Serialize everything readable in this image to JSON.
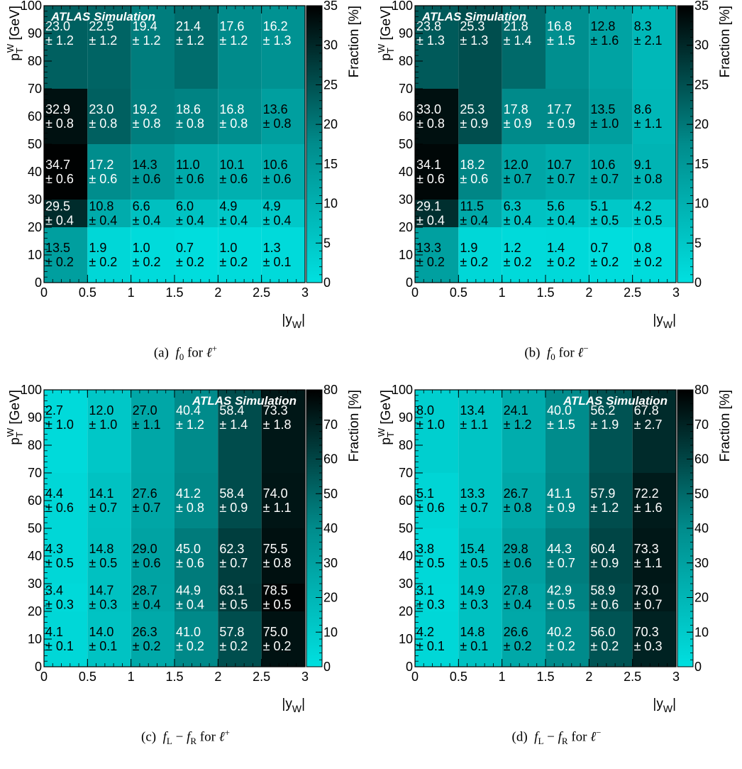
{
  "chart_data": [
    {
      "type": "heatmap",
      "caption": "(a) f0 for ℓ+",
      "x_edges": [
        0,
        0.5,
        1,
        1.5,
        2,
        2.5,
        3
      ],
      "y_edges": [
        0,
        20,
        30,
        50,
        70,
        100
      ],
      "xlim": [
        0,
        3
      ],
      "ylim": [
        0,
        100
      ],
      "x_ticks": [
        "0",
        "0.5",
        "1",
        "1.5",
        "2",
        "2.5",
        "3"
      ],
      "y_ticks": [
        "0",
        "10",
        "20",
        "30",
        "40",
        "50",
        "60",
        "70",
        "80",
        "90",
        "100"
      ],
      "xlabel": "|yW|",
      "ylabel": "pTW [GeV]",
      "zlabel": "Fraction [%]",
      "zlim": [
        0,
        35
      ],
      "z_ticks": [
        "0",
        "5",
        "10",
        "15",
        "20",
        "25",
        "30",
        "35"
      ],
      "label": "ATLAS Simulation",
      "label_position": "top-left",
      "values": [
        [
          13.5,
          1.9,
          1.0,
          0.7,
          1.0,
          1.3
        ],
        [
          29.5,
          10.8,
          6.6,
          6.0,
          4.9,
          4.9
        ],
        [
          34.7,
          17.2,
          14.3,
          11.0,
          10.1,
          10.6
        ],
        [
          32.9,
          23.0,
          19.2,
          18.6,
          16.8,
          13.6
        ],
        [
          23.0,
          22.5,
          19.4,
          21.4,
          17.6,
          16.2
        ]
      ],
      "errors": [
        [
          0.2,
          0.2,
          0.2,
          0.2,
          0.2,
          0.1
        ],
        [
          0.4,
          0.4,
          0.4,
          0.4,
          0.4,
          0.4
        ],
        [
          0.6,
          0.6,
          0.6,
          0.6,
          0.6,
          0.6
        ],
        [
          0.8,
          0.8,
          0.8,
          0.8,
          0.8,
          0.8
        ],
        [
          1.2,
          1.2,
          1.2,
          1.2,
          1.2,
          1.3
        ]
      ],
      "value_labels": [
        [
          "13.5",
          "1.9",
          "1.0",
          "0.7",
          "1.0",
          "1.3"
        ],
        [
          "29.5",
          "10.8",
          "6.6",
          "6.0",
          "4.9",
          "4.9"
        ],
        [
          "34.7",
          "17.2",
          "14.3",
          "11.0",
          "10.1",
          "10.6"
        ],
        [
          "32.9",
          "23.0",
          "19.2",
          "18.6",
          "16.8",
          "13.6"
        ],
        [
          "23.0",
          "22.5",
          "19.4",
          "21.4",
          "17.6",
          "16.2"
        ]
      ],
      "error_labels": [
        [
          "± 0.2",
          "± 0.2",
          "± 0.2",
          "± 0.2",
          "± 0.2",
          "± 0.1"
        ],
        [
          "± 0.4",
          "± 0.4",
          "± 0.4",
          "± 0.4",
          "± 0.4",
          "± 0.4"
        ],
        [
          "± 0.6",
          "± 0.6",
          "± 0.6",
          "± 0.6",
          "± 0.6",
          "± 0.6"
        ],
        [
          "± 0.8",
          "± 0.8",
          "± 0.8",
          "± 0.8",
          "± 0.8",
          "± 0.8"
        ],
        [
          "± 1.2",
          "± 1.2",
          "± 1.2",
          "± 1.2",
          "± 1.2",
          "± 1.3"
        ]
      ]
    },
    {
      "type": "heatmap",
      "caption": "(b) f0 for ℓ−",
      "x_edges": [
        0,
        0.5,
        1,
        1.5,
        2,
        2.5,
        3
      ],
      "y_edges": [
        0,
        20,
        30,
        50,
        70,
        100
      ],
      "xlim": [
        0,
        3
      ],
      "ylim": [
        0,
        100
      ],
      "x_ticks": [
        "0",
        "0.5",
        "1",
        "1.5",
        "2",
        "2.5",
        "3"
      ],
      "y_ticks": [
        "0",
        "10",
        "20",
        "30",
        "40",
        "50",
        "60",
        "70",
        "80",
        "90",
        "100"
      ],
      "xlabel": "|yW|",
      "ylabel": "pTW [GeV]",
      "zlabel": "Fraction [%]",
      "zlim": [
        0,
        35
      ],
      "z_ticks": [
        "0",
        "5",
        "10",
        "15",
        "20",
        "25",
        "30",
        "35"
      ],
      "label": "ATLAS Simulation",
      "label_position": "top-left",
      "values": [
        [
          13.3,
          1.9,
          1.2,
          1.4,
          0.7,
          0.8
        ],
        [
          29.1,
          11.5,
          6.3,
          5.6,
          5.1,
          4.2
        ],
        [
          34.1,
          18.2,
          12.0,
          10.7,
          10.6,
          9.1
        ],
        [
          33.0,
          25.3,
          17.8,
          17.7,
          13.5,
          8.6
        ],
        [
          23.8,
          25.3,
          21.8,
          16.8,
          12.8,
          8.3
        ]
      ],
      "errors": [
        [
          0.2,
          0.2,
          0.2,
          0.2,
          0.2,
          0.2
        ],
        [
          0.4,
          0.4,
          0.4,
          0.4,
          0.5,
          0.5
        ],
        [
          0.6,
          0.6,
          0.7,
          0.7,
          0.7,
          0.8
        ],
        [
          0.8,
          0.9,
          0.9,
          0.9,
          1.0,
          1.1
        ],
        [
          1.3,
          1.3,
          1.4,
          1.5,
          1.6,
          2.1
        ]
      ],
      "value_labels": [
        [
          "13.3",
          "1.9",
          "1.2",
          "1.4",
          "0.7",
          "0.8"
        ],
        [
          "29.1",
          "11.5",
          "6.3",
          "5.6",
          "5.1",
          "4.2"
        ],
        [
          "34.1",
          "18.2",
          "12.0",
          "10.7",
          "10.6",
          "9.1"
        ],
        [
          "33.0",
          "25.3",
          "17.8",
          "17.7",
          "13.5",
          "8.6"
        ],
        [
          "23.8",
          "25.3",
          "21.8",
          "16.8",
          "12.8",
          "8.3"
        ]
      ],
      "error_labels": [
        [
          "± 0.2",
          "± 0.2",
          "± 0.2",
          "± 0.2",
          "± 0.2",
          "± 0.2"
        ],
        [
          "± 0.4",
          "± 0.4",
          "± 0.4",
          "± 0.4",
          "± 0.5",
          "± 0.5"
        ],
        [
          "± 0.6",
          "± 0.6",
          "± 0.7",
          "± 0.7",
          "± 0.7",
          "± 0.8"
        ],
        [
          "± 0.8",
          "± 0.9",
          "± 0.9",
          "± 0.9",
          "± 1.0",
          "± 1.1"
        ],
        [
          "± 1.3",
          "± 1.3",
          "± 1.4",
          "± 1.5",
          "± 1.6",
          "± 2.1"
        ]
      ]
    },
    {
      "type": "heatmap",
      "caption": "(c) fL − fR for ℓ+",
      "x_edges": [
        0,
        0.5,
        1,
        1.5,
        2,
        2.5,
        3
      ],
      "y_edges": [
        0,
        20,
        30,
        50,
        70,
        100
      ],
      "xlim": [
        0,
        3
      ],
      "ylim": [
        0,
        100
      ],
      "x_ticks": [
        "0",
        "0.5",
        "1",
        "1.5",
        "2",
        "2.5",
        "3"
      ],
      "y_ticks": [
        "0",
        "10",
        "20",
        "30",
        "40",
        "50",
        "60",
        "70",
        "80",
        "90",
        "100"
      ],
      "xlabel": "|yW|",
      "ylabel": "pTW [GeV]",
      "zlabel": "Fraction [%]",
      "zlim": [
        0,
        80
      ],
      "z_ticks": [
        "0",
        "10",
        "20",
        "30",
        "40",
        "50",
        "60",
        "70",
        "80"
      ],
      "label": "ATLAS Simulation",
      "label_position": "top-right",
      "values": [
        [
          4.1,
          14.0,
          26.3,
          41.0,
          57.8,
          75.0
        ],
        [
          3.4,
          14.7,
          28.7,
          44.9,
          63.1,
          78.5
        ],
        [
          4.3,
          14.8,
          29.0,
          45.0,
          62.3,
          75.5
        ],
        [
          4.4,
          14.1,
          27.6,
          41.2,
          58.4,
          74.0
        ],
        [
          2.7,
          12.0,
          27.0,
          40.4,
          58.4,
          73.3
        ]
      ],
      "errors": [
        [
          0.1,
          0.1,
          0.2,
          0.2,
          0.2,
          0.2
        ],
        [
          0.3,
          0.3,
          0.4,
          0.4,
          0.5,
          0.5
        ],
        [
          0.5,
          0.5,
          0.6,
          0.6,
          0.7,
          0.8
        ],
        [
          0.6,
          0.7,
          0.7,
          0.8,
          0.9,
          1.1
        ],
        [
          1.0,
          1.0,
          1.1,
          1.2,
          1.4,
          1.8
        ]
      ],
      "value_labels": [
        [
          "4.1",
          "14.0",
          "26.3",
          "41.0",
          "57.8",
          "75.0"
        ],
        [
          "3.4",
          "14.7",
          "28.7",
          "44.9",
          "63.1",
          "78.5"
        ],
        [
          "4.3",
          "14.8",
          "29.0",
          "45.0",
          "62.3",
          "75.5"
        ],
        [
          "4.4",
          "14.1",
          "27.6",
          "41.2",
          "58.4",
          "74.0"
        ],
        [
          "2.7",
          "12.0",
          "27.0",
          "40.4",
          "58.4",
          "73.3"
        ]
      ],
      "error_labels": [
        [
          "± 0.1",
          "± 0.1",
          "± 0.2",
          "± 0.2",
          "± 0.2",
          "± 0.2"
        ],
        [
          "± 0.3",
          "± 0.3",
          "± 0.4",
          "± 0.4",
          "± 0.5",
          "± 0.5"
        ],
        [
          "± 0.5",
          "± 0.5",
          "± 0.6",
          "± 0.6",
          "± 0.7",
          "± 0.8"
        ],
        [
          "± 0.6",
          "± 0.7",
          "± 0.7",
          "± 0.8",
          "± 0.9",
          "± 1.1"
        ],
        [
          "± 1.0",
          "± 1.0",
          "± 1.1",
          "± 1.2",
          "± 1.4",
          "± 1.8"
        ]
      ]
    },
    {
      "type": "heatmap",
      "caption": "(d) fL − fR for ℓ−",
      "x_edges": [
        0,
        0.5,
        1,
        1.5,
        2,
        2.5,
        3
      ],
      "y_edges": [
        0,
        20,
        30,
        50,
        70,
        100
      ],
      "xlim": [
        0,
        3
      ],
      "ylim": [
        0,
        100
      ],
      "x_ticks": [
        "0",
        "0.5",
        "1",
        "1.5",
        "2",
        "2.5",
        "3"
      ],
      "y_ticks": [
        "0",
        "10",
        "20",
        "30",
        "40",
        "50",
        "60",
        "70",
        "80",
        "90",
        "100"
      ],
      "xlabel": "|yW|",
      "ylabel": "pTW [GeV]",
      "zlabel": "Fraction [%]",
      "zlim": [
        0,
        80
      ],
      "z_ticks": [
        "0",
        "10",
        "20",
        "30",
        "40",
        "50",
        "60",
        "70",
        "80"
      ],
      "label": "ATLAS Simulation",
      "label_position": "top-right",
      "values": [
        [
          4.2,
          14.8,
          26.6,
          40.2,
          56.0,
          70.3
        ],
        [
          3.1,
          14.9,
          27.8,
          42.9,
          58.9,
          73.0
        ],
        [
          3.8,
          15.4,
          29.8,
          44.3,
          60.4,
          73.3
        ],
        [
          5.1,
          13.3,
          26.7,
          41.1,
          57.9,
          72.2
        ],
        [
          8.0,
          13.4,
          24.1,
          40.0,
          56.2,
          67.8
        ]
      ],
      "errors": [
        [
          0.1,
          0.1,
          0.2,
          0.2,
          0.2,
          0.3
        ],
        [
          0.3,
          0.3,
          0.4,
          0.5,
          0.6,
          0.7
        ],
        [
          0.5,
          0.5,
          0.6,
          0.7,
          0.9,
          1.1
        ],
        [
          0.6,
          0.7,
          0.8,
          0.9,
          1.2,
          1.6
        ],
        [
          1.0,
          1.1,
          1.2,
          1.5,
          1.9,
          2.7
        ]
      ],
      "value_labels": [
        [
          "4.2",
          "14.8",
          "26.6",
          "40.2",
          "56.0",
          "70.3"
        ],
        [
          "3.1",
          "14.9",
          "27.8",
          "42.9",
          "58.9",
          "73.0"
        ],
        [
          "3.8",
          "15.4",
          "29.8",
          "44.3",
          "60.4",
          "73.3"
        ],
        [
          "5.1",
          "13.3",
          "26.7",
          "41.1",
          "57.9",
          "72.2"
        ],
        [
          "8.0",
          "13.4",
          "24.1",
          "40.0",
          "56.2",
          "67.8"
        ]
      ],
      "error_labels": [
        [
          "± 0.1",
          "± 0.1",
          "± 0.2",
          "± 0.2",
          "± 0.2",
          "± 0.3"
        ],
        [
          "± 0.3",
          "± 0.3",
          "± 0.4",
          "± 0.5",
          "± 0.6",
          "± 0.7"
        ],
        [
          "± 0.5",
          "± 0.5",
          "± 0.6",
          "± 0.7",
          "± 0.9",
          "± 1.1"
        ],
        [
          "± 0.6",
          "± 0.7",
          "± 0.8",
          "± 0.9",
          "± 1.2",
          "± 1.6"
        ],
        [
          "± 1.0",
          "± 1.1",
          "± 1.2",
          "± 1.5",
          "± 1.9",
          "± 2.7"
        ]
      ]
    }
  ],
  "colors": {
    "palette_low": "#00e0e0",
    "palette_mid": "#008c8c",
    "palette_high": "#000000",
    "frame": "#000000"
  },
  "captions": [
    {
      "prefix": "(a)",
      "var": "f",
      "sub": "0",
      "for": "for",
      "lepton": "ℓ",
      "sign": "+"
    },
    {
      "prefix": "(b)",
      "var": "f",
      "sub": "0",
      "for": "for",
      "lepton": "ℓ",
      "sign": "−"
    },
    {
      "prefix": "(c)",
      "var": "f",
      "sub": "L",
      "minus": "−",
      "var2": "f",
      "sub2": "R",
      "for": "for",
      "lepton": "ℓ",
      "sign": "+"
    },
    {
      "prefix": "(d)",
      "var": "f",
      "sub": "L",
      "minus": "−",
      "var2": "f",
      "sub2": "R",
      "for": "for",
      "lepton": "ℓ",
      "sign": "−"
    }
  ]
}
